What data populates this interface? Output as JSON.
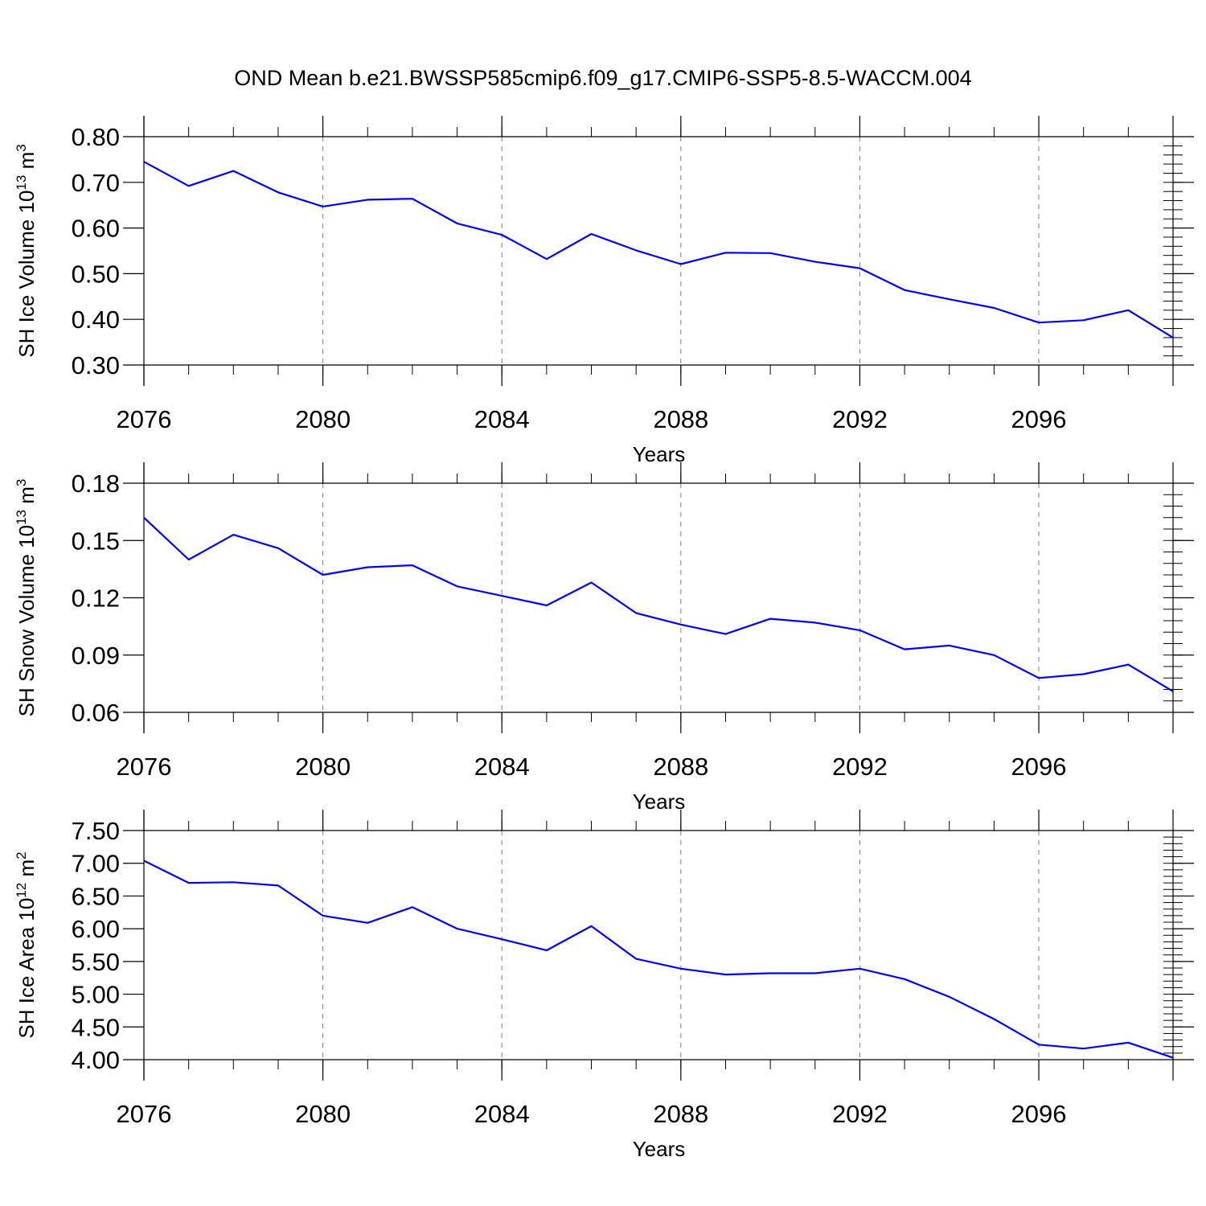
{
  "title": "OND Mean b.e21.BWSSP585cmip6.f09_g17.CMIP6-SSP5-8.5-WACCM.004",
  "colors": {
    "line": "#0000ff",
    "axis": "#000000",
    "grid": "#808080",
    "background": "#ffffff"
  },
  "chart_data": [
    {
      "type": "line",
      "ylabel_base": "SH Ice Volume 10",
      "ylabel_exp": "13",
      "ylabel_unit": " m",
      "ylabel_unit_exp": "3",
      "xlabel": "Years",
      "xlim": [
        2076,
        2099
      ],
      "ylim": [
        0.3,
        0.8
      ],
      "yticks": [
        0.3,
        0.4,
        0.5,
        0.6,
        0.7,
        0.8
      ],
      "ytick_labels": [
        "0.30",
        "0.40",
        "0.50",
        "0.60",
        "0.70",
        "0.80"
      ],
      "yminor_step": 0.02,
      "xticks": [
        2076,
        2080,
        2084,
        2088,
        2092,
        2096
      ],
      "xtick_labels": [
        "2076",
        "2080",
        "2084",
        "2088",
        "2092",
        "2096"
      ],
      "xgrid": [
        2080,
        2084,
        2088,
        2092,
        2096
      ],
      "x": [
        2076,
        2077,
        2078,
        2079,
        2080,
        2081,
        2082,
        2083,
        2084,
        2085,
        2086,
        2087,
        2088,
        2089,
        2090,
        2091,
        2092,
        2093,
        2094,
        2095,
        2096,
        2097,
        2098,
        2099
      ],
      "series": [
        {
          "name": "SH Ice Volume",
          "values": [
            0.745,
            0.692,
            0.725,
            0.678,
            0.647,
            0.662,
            0.664,
            0.61,
            0.585,
            0.532,
            0.587,
            0.551,
            0.521,
            0.546,
            0.545,
            0.526,
            0.512,
            0.464,
            0.444,
            0.425,
            0.393,
            0.398,
            0.42,
            0.36
          ]
        }
      ]
    },
    {
      "type": "line",
      "ylabel_base": "SH Snow Volume 10",
      "ylabel_exp": "13",
      "ylabel_unit": " m",
      "ylabel_unit_exp": "3",
      "xlabel": "Years",
      "xlim": [
        2076,
        2099
      ],
      "ylim": [
        0.06,
        0.18
      ],
      "yticks": [
        0.06,
        0.09,
        0.12,
        0.15,
        0.18
      ],
      "ytick_labels": [
        "0.06",
        "0.09",
        "0.12",
        "0.15",
        "0.18"
      ],
      "yminor_step": 0.006,
      "xticks": [
        2076,
        2080,
        2084,
        2088,
        2092,
        2096
      ],
      "xtick_labels": [
        "2076",
        "2080",
        "2084",
        "2088",
        "2092",
        "2096"
      ],
      "xgrid": [
        2080,
        2084,
        2088,
        2092,
        2096
      ],
      "x": [
        2076,
        2077,
        2078,
        2079,
        2080,
        2081,
        2082,
        2083,
        2084,
        2085,
        2086,
        2087,
        2088,
        2089,
        2090,
        2091,
        2092,
        2093,
        2094,
        2095,
        2096,
        2097,
        2098,
        2099
      ],
      "series": [
        {
          "name": "SH Snow Volume",
          "values": [
            0.162,
            0.14,
            0.153,
            0.146,
            0.132,
            0.136,
            0.137,
            0.126,
            0.121,
            0.116,
            0.128,
            0.112,
            0.106,
            0.101,
            0.109,
            0.107,
            0.103,
            0.093,
            0.095,
            0.09,
            0.078,
            0.08,
            0.085,
            0.071
          ]
        }
      ]
    },
    {
      "type": "line",
      "ylabel_base": "SH Ice Area 10",
      "ylabel_exp": "12",
      "ylabel_unit": " m",
      "ylabel_unit_exp": "2",
      "xlabel": "Years",
      "xlim": [
        2076,
        2099
      ],
      "ylim": [
        4.0,
        7.5
      ],
      "yticks": [
        4.0,
        4.5,
        5.0,
        5.5,
        6.0,
        6.5,
        7.0,
        7.5
      ],
      "ytick_labels": [
        "4.00",
        "4.50",
        "5.00",
        "5.50",
        "6.00",
        "6.50",
        "7.00",
        "7.50"
      ],
      "yminor_step": 0.1,
      "xticks": [
        2076,
        2080,
        2084,
        2088,
        2092,
        2096
      ],
      "xtick_labels": [
        "2076",
        "2080",
        "2084",
        "2088",
        "2092",
        "2096"
      ],
      "xgrid": [
        2080,
        2084,
        2088,
        2092,
        2096
      ],
      "x": [
        2076,
        2077,
        2078,
        2079,
        2080,
        2081,
        2082,
        2083,
        2084,
        2085,
        2086,
        2087,
        2088,
        2089,
        2090,
        2091,
        2092,
        2093,
        2094,
        2095,
        2096,
        2097,
        2098,
        2099
      ],
      "series": [
        {
          "name": "SH Ice Area",
          "values": [
            7.04,
            6.7,
            6.71,
            6.66,
            6.2,
            6.09,
            6.33,
            6.0,
            5.84,
            5.67,
            6.04,
            5.54,
            5.39,
            5.3,
            5.32,
            5.32,
            5.39,
            5.23,
            4.96,
            4.62,
            4.23,
            4.17,
            4.26,
            4.03
          ]
        }
      ]
    }
  ]
}
